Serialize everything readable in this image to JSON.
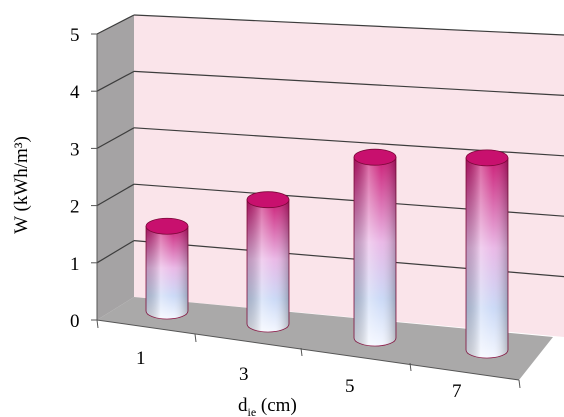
{
  "chart_data": {
    "type": "bar",
    "style": "3d-cylinder",
    "categories": [
      "1",
      "3",
      "5",
      "7"
    ],
    "values": [
      1.5,
      2.2,
      3.2,
      3.4
    ],
    "ylim": [
      0,
      5
    ],
    "yticks": [
      "0",
      "1",
      "2",
      "3",
      "4",
      "5"
    ],
    "ylabel": "W (kWh/m³)",
    "xlabel_main": "d",
    "xlabel_sub": "ie",
    "xlabel_unit": " (cm)",
    "grid": true,
    "legend": "none",
    "colors": {
      "bar_top": "#c8106e",
      "bar_mid": "#e9b6e6",
      "bar_low": "#c9d8f6",
      "back_wall": "#fae4ea",
      "side_wall": "#a5a3a4",
      "floor": "#aaa9a9",
      "grid": "#3d3d3d"
    }
  }
}
